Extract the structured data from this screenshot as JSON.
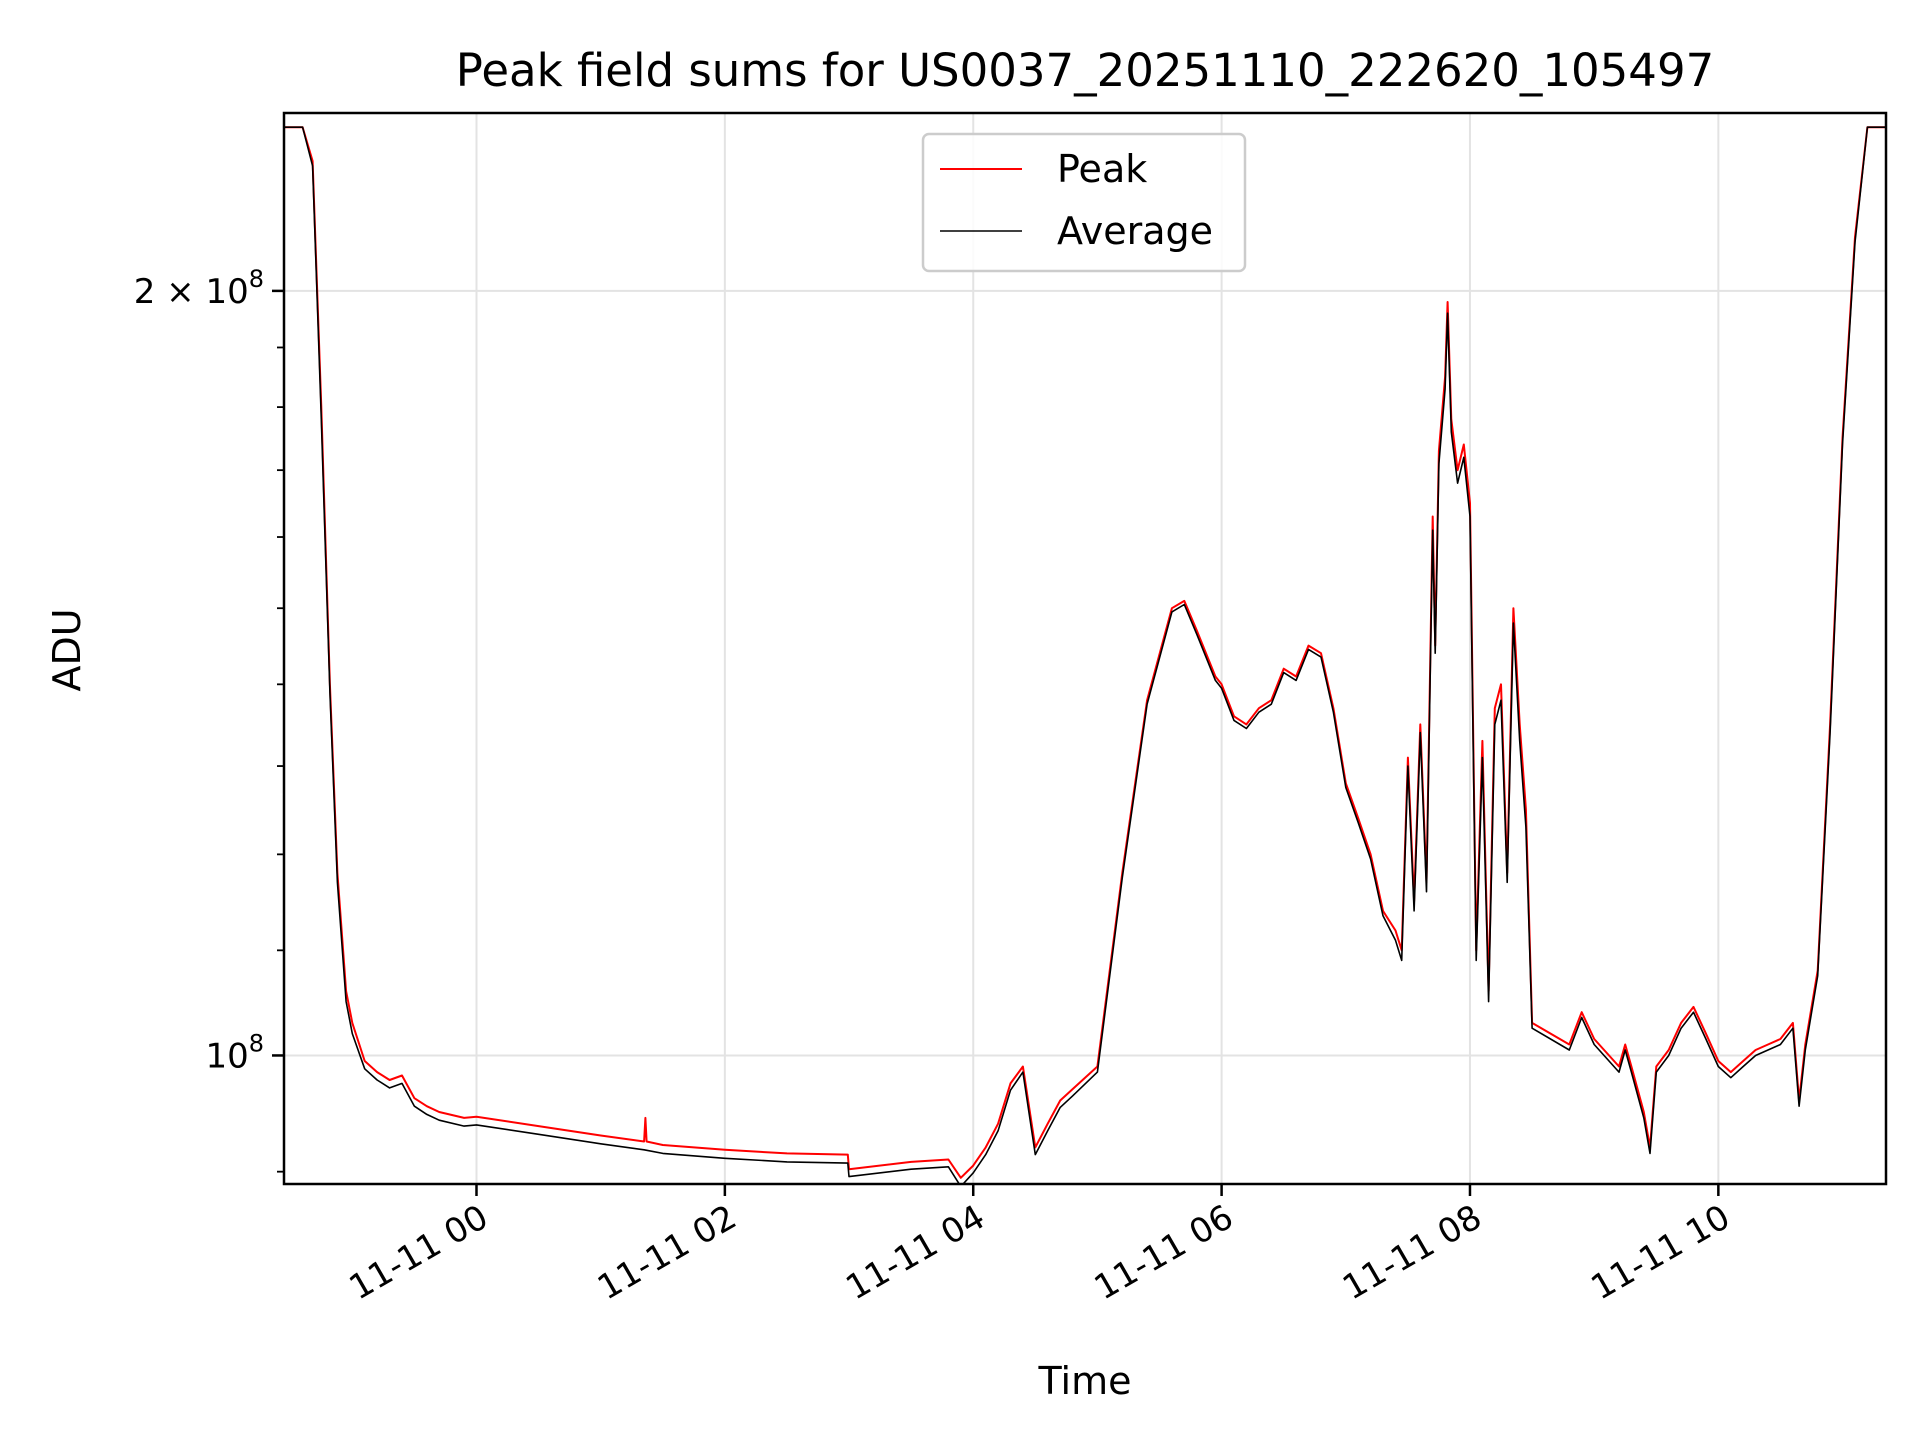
{
  "chart_data": {
    "type": "line",
    "title": "Peak field sums for US0037_20251110_222620_105497",
    "xlabel": "Time",
    "ylabel": "ADU",
    "yscale": "log",
    "ylim": [
      89000000,
      235000000
    ],
    "xlim": [
      -1.55,
      11.35
    ],
    "x_unit": "hours since 2025-11-11 00:00",
    "grid": true,
    "legend_position": "upper center",
    "colors": {
      "Peak": "#ff0000",
      "Average": "#000000"
    },
    "xticks": [
      {
        "x": 0,
        "label": "11-11 00"
      },
      {
        "x": 2,
        "label": "11-11 02"
      },
      {
        "x": 4,
        "label": "11-11 04"
      },
      {
        "x": 6,
        "label": "11-11 06"
      },
      {
        "x": 8,
        "label": "11-11 08"
      },
      {
        "x": 10,
        "label": "11-11 10"
      }
    ],
    "yticks": [
      {
        "y": 100000000,
        "base": "10",
        "exp": "8",
        "coef": ""
      },
      {
        "y": 200000000,
        "base": "10",
        "exp": "8",
        "coef": "2 × "
      }
    ],
    "series": [
      {
        "name": "Peak",
        "color": "#ff0000",
        "x": [
          -1.55,
          -1.48,
          -1.4,
          -1.32,
          -1.25,
          -1.18,
          -1.12,
          -1.05,
          -1.0,
          -0.9,
          -0.8,
          -0.7,
          -0.6,
          -0.5,
          -0.4,
          -0.3,
          -0.1,
          0.0,
          0.5,
          1.0,
          1.35,
          1.36,
          1.37,
          1.5,
          2.0,
          2.5,
          2.99,
          3.0,
          3.5,
          3.8,
          3.9,
          4.0,
          4.1,
          4.2,
          4.3,
          4.4,
          4.5,
          4.6,
          4.7,
          4.8,
          5.0,
          5.2,
          5.4,
          5.6,
          5.7,
          5.8,
          5.95,
          6.0,
          6.1,
          6.2,
          6.3,
          6.4,
          6.5,
          6.6,
          6.7,
          6.8,
          6.9,
          7.0,
          7.1,
          7.2,
          7.3,
          7.4,
          7.45,
          7.5,
          7.55,
          7.6,
          7.65,
          7.7,
          7.72,
          7.75,
          7.8,
          7.82,
          7.85,
          7.9,
          7.95,
          8.0,
          8.05,
          8.1,
          8.15,
          8.2,
          8.25,
          8.3,
          8.35,
          8.4,
          8.45,
          8.5,
          8.8,
          8.9,
          9.0,
          9.2,
          9.25,
          9.3,
          9.4,
          9.45,
          9.5,
          9.6,
          9.7,
          9.8,
          9.9,
          10.0,
          10.1,
          10.2,
          10.3,
          10.4,
          10.5,
          10.6,
          10.65,
          10.7,
          10.8,
          10.9,
          11.0,
          11.1,
          11.2,
          11.35
        ],
        "y": [
          232000000,
          232000000,
          232000000,
          225000000,
          180000000,
          140000000,
          118000000,
          106000000,
          103000000,
          99500000,
          98500000,
          97800000,
          98200000,
          96200000,
          95500000,
          95000000,
          94500000,
          94600000,
          93800000,
          93000000,
          92500000,
          94500000,
          92500000,
          92200000,
          91800000,
          91500000,
          91400000,
          90200000,
          90800000,
          91000000,
          89500000,
          90500000,
          92000000,
          94000000,
          97500000,
          99000000,
          92000000,
          94000000,
          96000000,
          97000000,
          99000000,
          118000000,
          138000000,
          150000000,
          151000000,
          147000000,
          141000000,
          140000000,
          136000000,
          135000000,
          137000000,
          138000000,
          142000000,
          141000000,
          145000000,
          144000000,
          137000000,
          128000000,
          124000000,
          120000000,
          114000000,
          112000000,
          110000000,
          131000000,
          115000000,
          135000000,
          117000000,
          163000000,
          145000000,
          173000000,
          185000000,
          198000000,
          178000000,
          170000000,
          174000000,
          165000000,
          110000000,
          133000000,
          106000000,
          137000000,
          140000000,
          118000000,
          150000000,
          135000000,
          125000000,
          103000000,
          101000000,
          104000000,
          101500000,
          99000000,
          101000000,
          99000000,
          95000000,
          92000000,
          99000000,
          100500000,
          103000000,
          104500000,
          102000000,
          99500000,
          98500000,
          99500000,
          100500000,
          101000000,
          101500000,
          103000000,
          96000000,
          101000000,
          108000000,
          135000000,
          175000000,
          210000000,
          232000000,
          232000000
        ],
        "lw": 2
      },
      {
        "name": "Average",
        "color": "#000000",
        "x": [
          -1.55,
          -1.48,
          -1.4,
          -1.32,
          -1.25,
          -1.18,
          -1.12,
          -1.05,
          -1.0,
          -0.9,
          -0.8,
          -0.7,
          -0.6,
          -0.5,
          -0.4,
          -0.3,
          -0.1,
          0.0,
          0.5,
          1.0,
          1.35,
          1.5,
          2.0,
          2.5,
          2.99,
          3.0,
          3.5,
          3.8,
          3.9,
          4.0,
          4.1,
          4.2,
          4.3,
          4.4,
          4.5,
          4.6,
          4.7,
          4.8,
          5.0,
          5.2,
          5.4,
          5.6,
          5.7,
          5.8,
          5.95,
          6.0,
          6.1,
          6.2,
          6.3,
          6.4,
          6.5,
          6.6,
          6.7,
          6.8,
          6.9,
          7.0,
          7.1,
          7.2,
          7.3,
          7.4,
          7.45,
          7.5,
          7.55,
          7.6,
          7.65,
          7.7,
          7.72,
          7.75,
          7.8,
          7.82,
          7.85,
          7.9,
          7.95,
          8.0,
          8.05,
          8.1,
          8.15,
          8.2,
          8.25,
          8.3,
          8.35,
          8.4,
          8.45,
          8.5,
          8.8,
          8.9,
          9.0,
          9.2,
          9.25,
          9.3,
          9.4,
          9.45,
          9.5,
          9.6,
          9.7,
          9.8,
          9.9,
          10.0,
          10.1,
          10.2,
          10.3,
          10.4,
          10.5,
          10.6,
          10.65,
          10.7,
          10.8,
          10.9,
          11.0,
          11.1,
          11.2,
          11.35
        ],
        "y": [
          232000000,
          232000000,
          232000000,
          224000000,
          178000000,
          139000000,
          117000000,
          105000000,
          102000000,
          98800000,
          97800000,
          97100000,
          97500000,
          95500000,
          94800000,
          94300000,
          93800000,
          93900000,
          93100000,
          92300000,
          91800000,
          91500000,
          91100000,
          90800000,
          90700000,
          89600000,
          90200000,
          90400000,
          88800000,
          89900000,
          91400000,
          93400000,
          96900000,
          98500000,
          91400000,
          93400000,
          95400000,
          96400000,
          98500000,
          117500000,
          137500000,
          149500000,
          150500000,
          146500000,
          140500000,
          139500000,
          135500000,
          134500000,
          136500000,
          137500000,
          141500000,
          140500000,
          144500000,
          143500000,
          136500000,
          127500000,
          123500000,
          119500000,
          113500000,
          111000000,
          109000000,
          130000000,
          114000000,
          134000000,
          116000000,
          161000000,
          144000000,
          171000000,
          183000000,
          196000000,
          176000000,
          168000000,
          172000000,
          163000000,
          109000000,
          131000000,
          105000000,
          135000000,
          138000000,
          117000000,
          148000000,
          133000000,
          123000000,
          102500000,
          100500000,
          103500000,
          101000000,
          98500000,
          100500000,
          98500000,
          94500000,
          91500000,
          98500000,
          100000000,
          102500000,
          104000000,
          101500000,
          99000000,
          98000000,
          99000000,
          100000000,
          100500000,
          101000000,
          102500000,
          95500000,
          100500000,
          107500000,
          134000000,
          174000000,
          209000000,
          232000000,
          232000000
        ],
        "lw": 1.6
      }
    ]
  }
}
